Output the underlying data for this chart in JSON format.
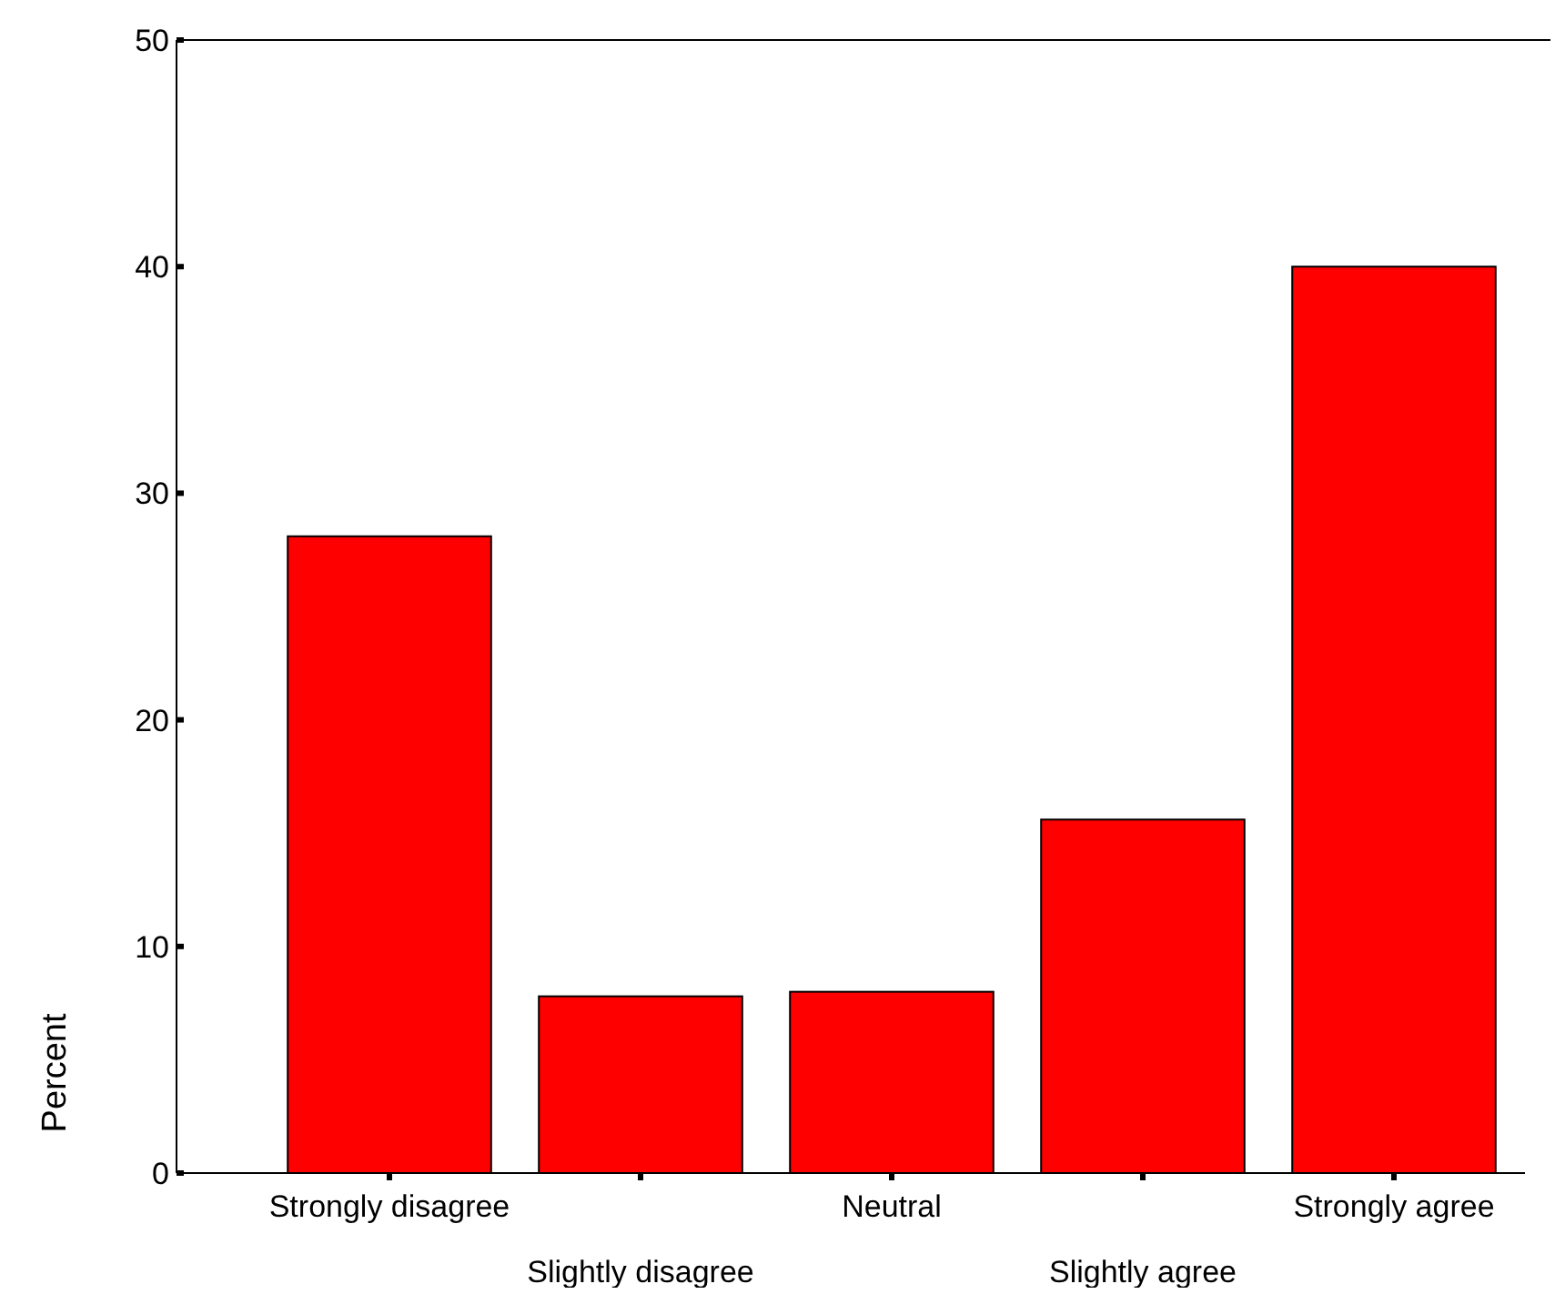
{
  "chart_data": {
    "type": "bar",
    "ylabel": "Percent",
    "categories": [
      "Strongly disagree",
      "Slightly disagree",
      "Neutral",
      "Slightly agree",
      "Strongly agree"
    ],
    "values": [
      28.1,
      7.8,
      8.0,
      15.6,
      40.0
    ],
    "color": "#ff0000",
    "ylim": [
      0,
      50
    ],
    "yticks": [
      0,
      10,
      20,
      30,
      40,
      50
    ],
    "grid": false
  }
}
